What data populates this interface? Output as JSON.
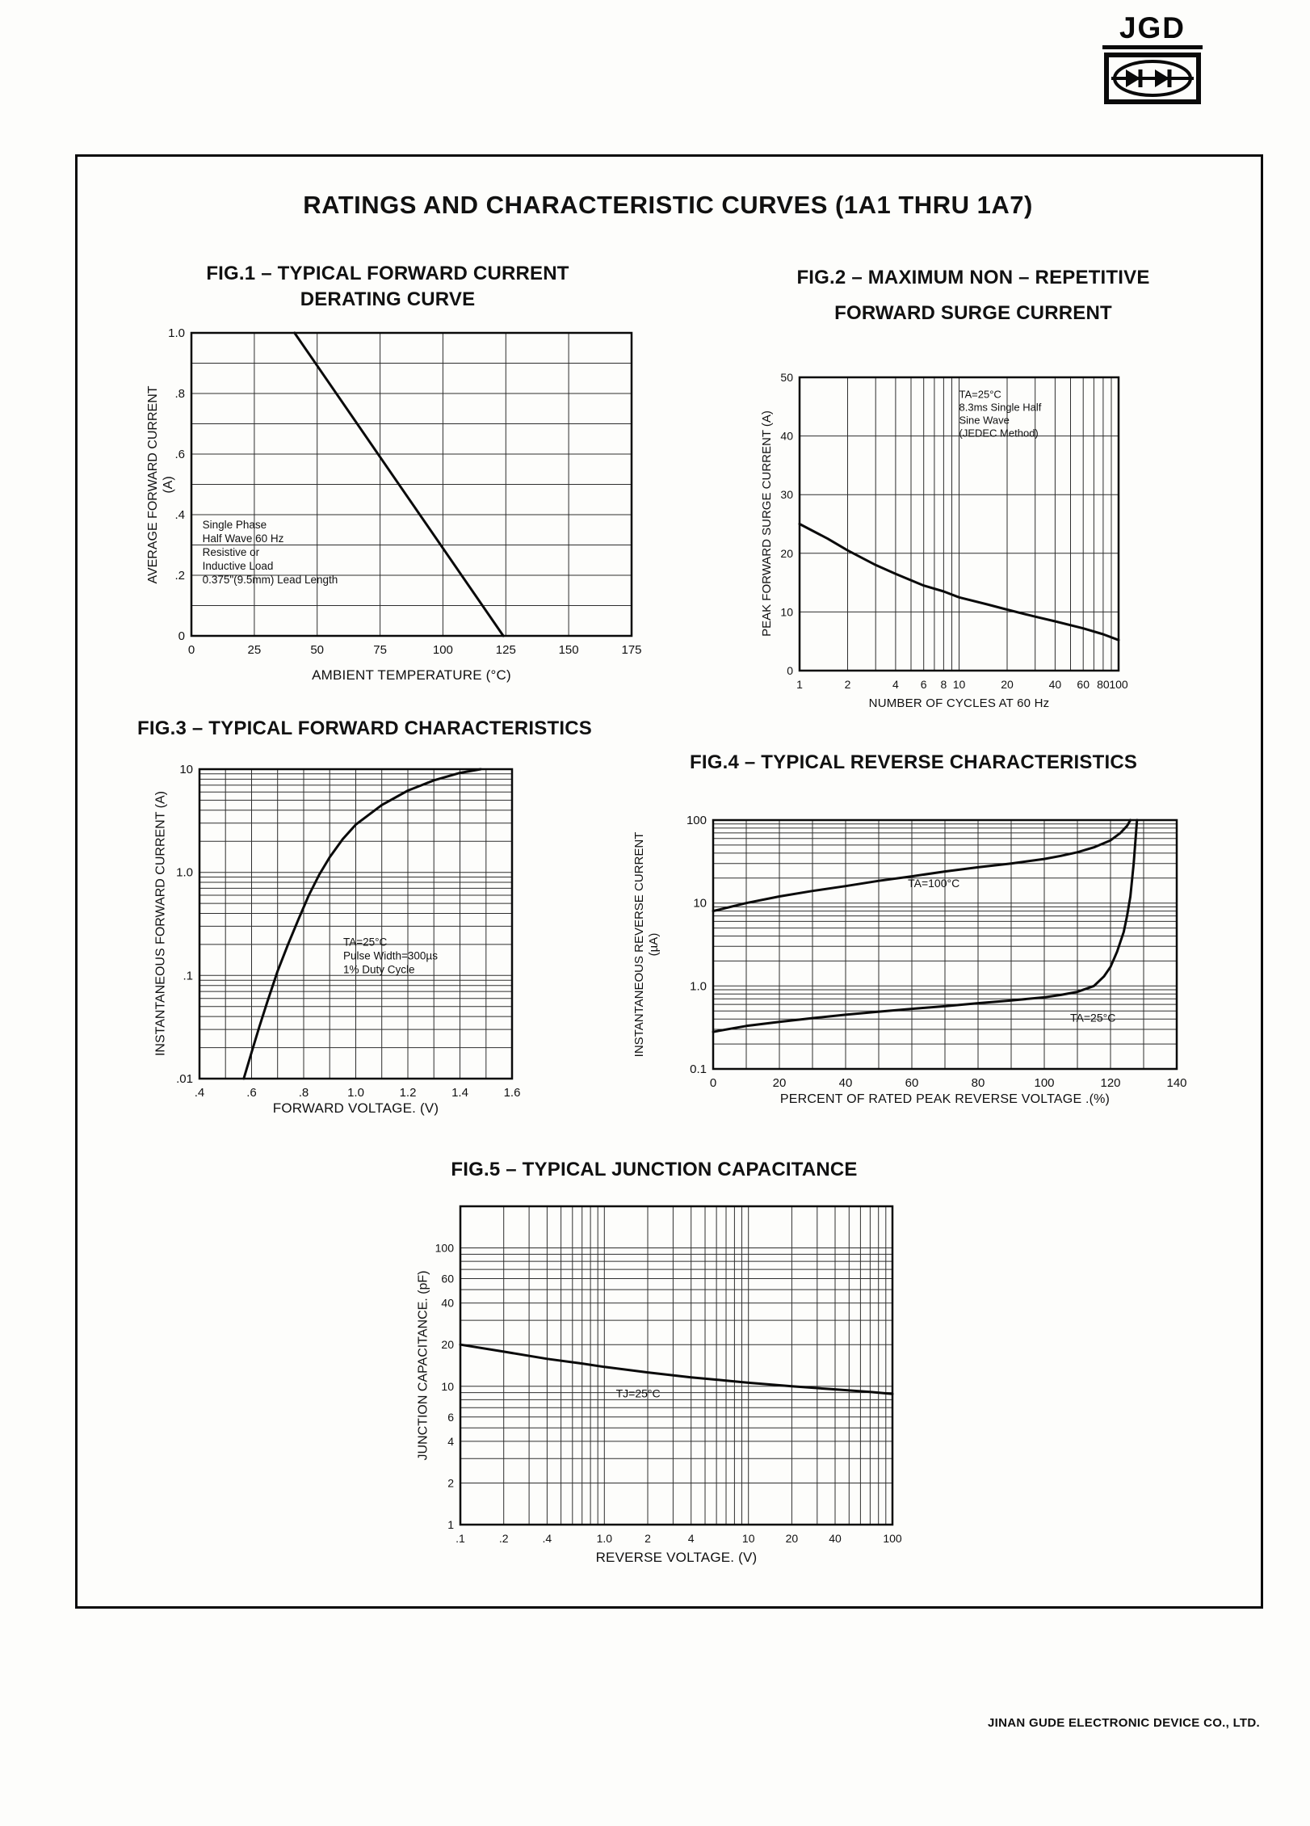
{
  "logo": {
    "text": "JGD"
  },
  "page_title": "RATINGS AND CHARACTERISTIC CURVES (1A1 THRU 1A7)",
  "footer": {
    "company": "JINAN GUDE ELECTRONIC DEVICE CO., LTD."
  },
  "chart_data": [
    {
      "id": "fig1",
      "type": "line",
      "title_lines": [
        "FIG.1 – TYPICAL FORWARD CURRENT",
        "DERATING CURVE"
      ],
      "xlabel": "AMBIENT TEMPERATURE (°C)",
      "ylabel_lines": [
        "AVERAGE FORWARD CURRENT",
        "(A)"
      ],
      "tick_size": 15,
      "x": {
        "type": "linear",
        "min": 0,
        "max": 175,
        "grid_step": 25,
        "ticks": [
          [
            0,
            "0"
          ],
          [
            25,
            "25"
          ],
          [
            50,
            "50"
          ],
          [
            75,
            "75"
          ],
          [
            100,
            "100"
          ],
          [
            125,
            "125"
          ],
          [
            150,
            "150"
          ],
          [
            175,
            "175"
          ]
        ]
      },
      "y": {
        "type": "linear",
        "min": 0,
        "max": 1,
        "grid_step": 0.1,
        "ticks": [
          [
            1,
            "1.0"
          ],
          [
            0.8,
            ".8"
          ],
          [
            0.6,
            ".6"
          ],
          [
            0.4,
            ".4"
          ],
          [
            0.2,
            ".2"
          ],
          [
            0,
            "0"
          ]
        ]
      },
      "series": [
        {
          "name": "derating-line",
          "points": [
            [
              41,
              1.0
            ],
            [
              124,
              0
            ]
          ]
        }
      ],
      "annotations": [
        {
          "lines": [
            "Single Phase",
            "Half Wave 60 Hz",
            "Resistive or",
            "Inductive Load",
            "0.375\"(9.5mm) Lead Length"
          ],
          "fx": 0.025,
          "fy": 0.645,
          "size": 13.5,
          "line_h": 17
        }
      ]
    },
    {
      "id": "fig2",
      "type": "line",
      "title_lines": [
        "FIG.2 – MAXIMUM NON – REPETITIVE",
        "FORWARD SURGE CURRENT"
      ],
      "xlabel": "NUMBER OF CYCLES AT 60 Hz",
      "ylabel_lines": [
        "PEAK FORWARD SURGE CURRENT  (A)"
      ],
      "tick_size": 14,
      "x": {
        "type": "log",
        "min": 1,
        "max": 100,
        "ticks": [
          [
            1,
            "1"
          ],
          [
            2,
            "2"
          ],
          [
            4,
            "4"
          ],
          [
            6,
            "6"
          ],
          [
            8,
            "8"
          ],
          [
            10,
            "10"
          ],
          [
            20,
            "20"
          ],
          [
            40,
            "40"
          ],
          [
            60,
            "60"
          ],
          [
            80,
            "80"
          ],
          [
            100,
            "100"
          ]
        ]
      },
      "y": {
        "type": "linear",
        "min": 0,
        "max": 50,
        "grid_step": 10,
        "ticks": [
          [
            50,
            "50"
          ],
          [
            40,
            "40"
          ],
          [
            30,
            "30"
          ],
          [
            20,
            "20"
          ],
          [
            10,
            "10"
          ],
          [
            0,
            "0"
          ]
        ]
      },
      "series": [
        {
          "name": "surge-current",
          "points": [
            [
              1,
              25
            ],
            [
              1.5,
              22.5
            ],
            [
              2,
              20.5
            ],
            [
              3,
              18
            ],
            [
              4,
              16.5
            ],
            [
              6,
              14.5
            ],
            [
              8,
              13.5
            ],
            [
              10,
              12.5
            ],
            [
              15,
              11.3
            ],
            [
              20,
              10.4
            ],
            [
              30,
              9.2
            ],
            [
              40,
              8.4
            ],
            [
              60,
              7.2
            ],
            [
              80,
              6.2
            ],
            [
              100,
              5.2
            ]
          ]
        }
      ],
      "annotations": [
        {
          "lines": [
            "TA=25°C",
            "8.3ms Single Half",
            "Sine Wave",
            "(JEDEC Method)"
          ],
          "fx": 0.5,
          "fy": 0.07,
          "size": 13,
          "line_h": 16
        }
      ]
    },
    {
      "id": "fig3",
      "type": "line",
      "title_lines": [
        "FIG.3 – TYPICAL FORWARD CHARACTERISTICS"
      ],
      "xlabel": "FORWARD VOLTAGE. (V)",
      "ylabel_lines": [
        "INSTANTANEOUS FORWARD CURRENT (A)"
      ],
      "tick_size": 15,
      "x": {
        "type": "linear",
        "min": 0.4,
        "max": 1.6,
        "grid_step": 0.1,
        "ticks": [
          [
            0.4,
            ".4"
          ],
          [
            0.6,
            ".6"
          ],
          [
            0.8,
            ".8"
          ],
          [
            1.0,
            "1.0"
          ],
          [
            1.2,
            "1.2"
          ],
          [
            1.4,
            "1.4"
          ],
          [
            1.6,
            "1.6"
          ]
        ]
      },
      "y": {
        "type": "log",
        "min": 0.01,
        "max": 10,
        "ticks": [
          [
            10,
            "10"
          ],
          [
            1,
            "1.0"
          ],
          [
            0.1,
            ".1"
          ],
          [
            0.01,
            ".01"
          ]
        ]
      },
      "series": [
        {
          "name": "forward-characteristic",
          "points": [
            [
              0.57,
              0.01
            ],
            [
              0.6,
              0.018
            ],
            [
              0.63,
              0.032
            ],
            [
              0.66,
              0.055
            ],
            [
              0.7,
              0.11
            ],
            [
              0.74,
              0.2
            ],
            [
              0.78,
              0.35
            ],
            [
              0.82,
              0.6
            ],
            [
              0.86,
              0.95
            ],
            [
              0.9,
              1.4
            ],
            [
              0.95,
              2.1
            ],
            [
              1.0,
              2.9
            ],
            [
              1.1,
              4.5
            ],
            [
              1.2,
              6.2
            ],
            [
              1.3,
              7.8
            ],
            [
              1.4,
              9.2
            ],
            [
              1.48,
              10
            ]
          ]
        }
      ],
      "annotations": [
        {
          "lines": [
            "TA=25°C",
            "Pulse Width=300µs",
            "1% Duty Cycle"
          ],
          "fx": 0.46,
          "fy": 0.57,
          "size": 13.5,
          "line_h": 17
        }
      ]
    },
    {
      "id": "fig4",
      "type": "line",
      "title_lines": [
        "FIG.4 – TYPICAL REVERSE CHARACTERISTICS"
      ],
      "xlabel": "PERCENT OF RATED PEAK REVERSE VOLTAGE .(%)",
      "ylabel_lines": [
        "INSTANTANEOUS REVERSE CURRENT",
        "(µA)"
      ],
      "tick_size": 15,
      "x": {
        "type": "linear",
        "min": 0,
        "max": 140,
        "grid_step": 10,
        "ticks": [
          [
            0,
            "0"
          ],
          [
            20,
            "20"
          ],
          [
            40,
            "40"
          ],
          [
            60,
            "60"
          ],
          [
            80,
            "80"
          ],
          [
            100,
            "100"
          ],
          [
            120,
            "120"
          ],
          [
            140,
            "140"
          ]
        ]
      },
      "y": {
        "type": "log",
        "min": 0.1,
        "max": 100,
        "ticks": [
          [
            100,
            "100"
          ],
          [
            10,
            "10"
          ],
          [
            1,
            "1.0"
          ],
          [
            0.1,
            "0.1"
          ]
        ]
      },
      "series": [
        {
          "name": "ta-100c",
          "points": [
            [
              0,
              8
            ],
            [
              10,
              10
            ],
            [
              20,
              12
            ],
            [
              30,
              14
            ],
            [
              40,
              16
            ],
            [
              50,
              18.5
            ],
            [
              60,
              21
            ],
            [
              70,
              24
            ],
            [
              80,
              27
            ],
            [
              90,
              30
            ],
            [
              100,
              34
            ],
            [
              105,
              37
            ],
            [
              110,
              41
            ],
            [
              115,
              47
            ],
            [
              120,
              57
            ],
            [
              123,
              70
            ],
            [
              125,
              85
            ],
            [
              126,
              100
            ]
          ]
        },
        {
          "name": "ta-25c",
          "points": [
            [
              0,
              0.28
            ],
            [
              10,
              0.33
            ],
            [
              20,
              0.37
            ],
            [
              30,
              0.41
            ],
            [
              40,
              0.45
            ],
            [
              50,
              0.49
            ],
            [
              60,
              0.53
            ],
            [
              70,
              0.57
            ],
            [
              80,
              0.62
            ],
            [
              90,
              0.67
            ],
            [
              100,
              0.73
            ],
            [
              105,
              0.78
            ],
            [
              110,
              0.85
            ],
            [
              115,
              1.0
            ],
            [
              118,
              1.3
            ],
            [
              120,
              1.7
            ],
            [
              122,
              2.6
            ],
            [
              124,
              4.5
            ],
            [
              125,
              7
            ],
            [
              126,
              12
            ],
            [
              127,
              30
            ],
            [
              128,
              100
            ]
          ]
        }
      ],
      "annotations": [
        {
          "lines": [
            "TA=100°C"
          ],
          "fx": 0.42,
          "fy": 0.27,
          "size": 14
        },
        {
          "lines": [
            "TA=25°C"
          ],
          "fx": 0.77,
          "fy": 0.81,
          "size": 14
        }
      ]
    },
    {
      "id": "fig5",
      "type": "line",
      "title_lines": [
        "FIG.5 – TYPICAL JUNCTION CAPACITANCE"
      ],
      "xlabel": "REVERSE VOLTAGE. (V)",
      "ylabel_lines": [
        "JUNCTION CAPACITANCE. (pF)"
      ],
      "tick_size": 14,
      "x": {
        "type": "log",
        "min": 0.1,
        "max": 100,
        "ticks": [
          [
            0.1,
            ".1"
          ],
          [
            0.2,
            ".2"
          ],
          [
            0.4,
            ".4"
          ],
          [
            1,
            "1.0"
          ],
          [
            2,
            "2"
          ],
          [
            4,
            "4"
          ],
          [
            10,
            "10"
          ],
          [
            20,
            "20"
          ],
          [
            40,
            "40"
          ],
          [
            100,
            "100"
          ]
        ]
      },
      "y": {
        "type": "log",
        "min": 1,
        "max": 200,
        "ticks": [
          [
            100,
            "100"
          ],
          [
            60,
            "60"
          ],
          [
            40,
            "40"
          ],
          [
            20,
            "20"
          ],
          [
            10,
            "10"
          ],
          [
            6,
            "6"
          ],
          [
            4,
            "4"
          ],
          [
            2,
            "2"
          ],
          [
            1,
            "1"
          ]
        ]
      },
      "series": [
        {
          "name": "junction-capacitance",
          "points": [
            [
              0.1,
              20
            ],
            [
              0.2,
              17.8
            ],
            [
              0.4,
              15.8
            ],
            [
              0.7,
              14.6
            ],
            [
              1,
              13.8
            ],
            [
              2,
              12.6
            ],
            [
              4,
              11.6
            ],
            [
              7,
              11.0
            ],
            [
              10,
              10.6
            ],
            [
              20,
              10.0
            ],
            [
              40,
              9.5
            ],
            [
              70,
              9.1
            ],
            [
              100,
              8.8
            ]
          ]
        }
      ],
      "annotations": [
        {
          "lines": [
            "TJ=25°C"
          ],
          "fx": 0.36,
          "fy": 0.6,
          "size": 14
        }
      ]
    }
  ]
}
